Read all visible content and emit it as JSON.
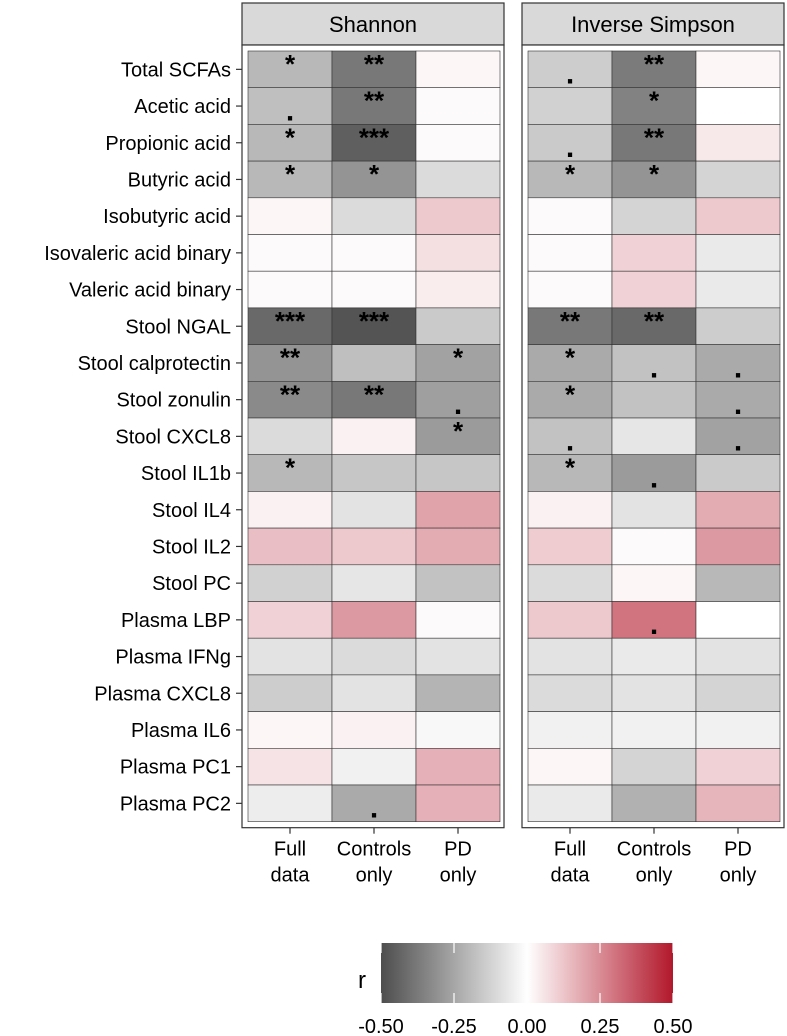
{
  "chart_data": {
    "type": "heatmap",
    "panels": [
      {
        "name": "Shannon",
        "columns": [
          "Full data",
          "Controls only",
          "PD only"
        ],
        "values": [
          [
            -0.2,
            -0.38,
            0.02
          ],
          [
            -0.18,
            -0.38,
            0.01
          ],
          [
            -0.2,
            -0.45,
            0.01
          ],
          [
            -0.2,
            -0.3,
            -0.1
          ],
          [
            0.02,
            -0.1,
            0.12
          ],
          [
            0.01,
            0.01,
            0.07
          ],
          [
            0.01,
            0.01,
            0.04
          ],
          [
            -0.42,
            -0.48,
            -0.15
          ],
          [
            -0.3,
            -0.18,
            -0.26
          ],
          [
            -0.33,
            -0.38,
            -0.27
          ],
          [
            -0.1,
            0.03,
            -0.28
          ],
          [
            -0.2,
            -0.16,
            -0.16
          ],
          [
            0.03,
            -0.08,
            0.2
          ],
          [
            0.14,
            0.12,
            0.18
          ],
          [
            -0.13,
            -0.07,
            -0.17
          ],
          [
            0.1,
            0.22,
            0.01
          ],
          [
            -0.08,
            -0.1,
            -0.08
          ],
          [
            -0.14,
            -0.08,
            -0.21
          ],
          [
            0.02,
            0.03,
            -0.02
          ],
          [
            0.06,
            -0.04,
            0.17
          ],
          [
            -0.05,
            -0.24,
            0.17
          ]
        ],
        "annotations": [
          [
            "*",
            "**",
            ""
          ],
          [
            ".",
            "**",
            ""
          ],
          [
            "*",
            "***",
            ""
          ],
          [
            "*",
            "*",
            ""
          ],
          [
            "",
            "",
            ""
          ],
          [
            "",
            "",
            ""
          ],
          [
            "",
            "",
            ""
          ],
          [
            "***",
            "***",
            ""
          ],
          [
            "**",
            "",
            "*"
          ],
          [
            "**",
            "**",
            "."
          ],
          [
            "",
            "",
            "*"
          ],
          [
            "*",
            "",
            ""
          ],
          [
            "",
            "",
            ""
          ],
          [
            "",
            "",
            ""
          ],
          [
            "",
            "",
            ""
          ],
          [
            "",
            "",
            ""
          ],
          [
            "",
            "",
            ""
          ],
          [
            "",
            "",
            ""
          ],
          [
            "",
            "",
            ""
          ],
          [
            "",
            "",
            ""
          ],
          [
            "",
            ".",
            ""
          ]
        ]
      },
      {
        "name": "Inverse Simpson",
        "columns": [
          "Full data",
          "Controls only",
          "PD only"
        ],
        "values": [
          [
            -0.14,
            -0.37,
            0.02
          ],
          [
            -0.13,
            -0.35,
            0.0
          ],
          [
            -0.15,
            -0.38,
            0.05
          ],
          [
            -0.2,
            -0.3,
            -0.12
          ],
          [
            0.01,
            -0.12,
            0.12
          ],
          [
            0.01,
            0.1,
            -0.06
          ],
          [
            0.01,
            0.1,
            -0.06
          ],
          [
            -0.38,
            -0.42,
            -0.14
          ],
          [
            -0.24,
            -0.17,
            -0.24
          ],
          [
            -0.24,
            -0.17,
            -0.24
          ],
          [
            -0.17,
            -0.07,
            -0.26
          ],
          [
            -0.2,
            -0.28,
            -0.15
          ],
          [
            0.03,
            -0.08,
            0.18
          ],
          [
            0.11,
            0.01,
            0.22
          ],
          [
            -0.1,
            0.02,
            -0.2
          ],
          [
            0.12,
            0.3,
            0.0
          ],
          [
            -0.08,
            -0.06,
            -0.08
          ],
          [
            -0.1,
            -0.08,
            -0.12
          ],
          [
            -0.04,
            -0.04,
            -0.04
          ],
          [
            0.02,
            -0.12,
            0.1
          ],
          [
            -0.06,
            -0.22,
            0.16
          ]
        ],
        "annotations": [
          [
            ".",
            "**",
            ""
          ],
          [
            "",
            "*",
            ""
          ],
          [
            ".",
            "**",
            ""
          ],
          [
            "*",
            "*",
            ""
          ],
          [
            "",
            "",
            ""
          ],
          [
            "",
            "",
            ""
          ],
          [
            "",
            "",
            ""
          ],
          [
            "**",
            "**",
            ""
          ],
          [
            "*",
            ".",
            "."
          ],
          [
            "*",
            "",
            "."
          ],
          [
            ".",
            "",
            "."
          ],
          [
            "*",
            ".",
            ""
          ],
          [
            "",
            "",
            ""
          ],
          [
            "",
            "",
            ""
          ],
          [
            "",
            "",
            ""
          ],
          [
            "",
            ".",
            ""
          ],
          [
            "",
            "",
            ""
          ],
          [
            "",
            "",
            ""
          ],
          [
            "",
            "",
            ""
          ],
          [
            "",
            "",
            ""
          ],
          [
            "",
            "",
            ""
          ]
        ]
      }
    ],
    "rows": [
      "Total SCFAs",
      "Acetic acid",
      "Propionic acid",
      "Butyric acid",
      "Isobutyric acid",
      "Isovaleric acid binary",
      "Valeric acid binary",
      "Stool NGAL",
      "Stool calprotectin",
      "Stool zonulin",
      "Stool CXCL8",
      "Stool IL1b",
      "Stool IL4",
      "Stool IL2",
      "Stool PC",
      "Plasma LBP",
      "Plasma IFNg",
      "Plasma CXCL8",
      "Plasma IL6",
      "Plasma PC1",
      "Plasma PC2"
    ],
    "column_labels": [
      [
        "Full",
        "data"
      ],
      [
        "Controls",
        "only"
      ],
      [
        "PD",
        "only"
      ]
    ],
    "legend": {
      "title": "r",
      "range": [
        -0.5,
        0.5
      ],
      "ticks": [
        -0.5,
        -0.25,
        0,
        0.25,
        0.5
      ],
      "tick_labels": [
        "-0.50",
        "-0.25",
        "0.00",
        "0.25",
        "0.50"
      ],
      "placement": "bottom"
    },
    "colors": {
      "low": "#4d4d4d",
      "mid": "#ffffff",
      "high": "#b2182b",
      "strip_bg": "#d9d9d9",
      "cell_border": "#333333"
    }
  }
}
